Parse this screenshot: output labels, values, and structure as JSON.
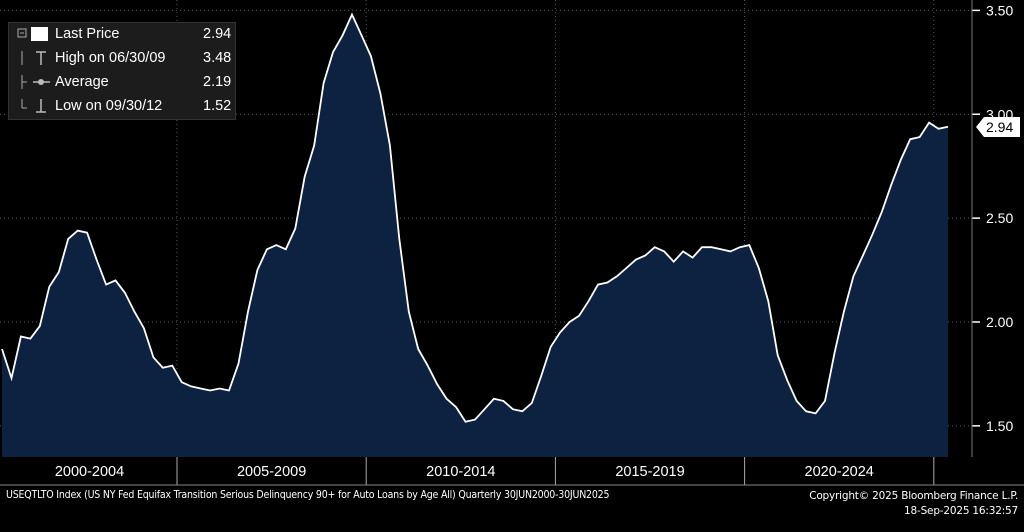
{
  "legend": {
    "last_label": "Last Price",
    "last_value": "2.94",
    "high_label": "High on 06/30/09",
    "high_value": "3.48",
    "avg_label": "Average",
    "avg_value": "2.19",
    "low_label": "Low on 09/30/12",
    "low_value": "1.52"
  },
  "footer": {
    "description": "USEQTLTO Index (US NY Fed Equifax Transition Serious Delinquency 90+ for Auto Loans by Age All)  Quarterly 30JUN2000-30JUN2025",
    "copyright": "Copyright© 2025 Bloomberg Finance L.P.",
    "timestamp": "18-Sep-2025 16:32:57"
  },
  "colors": {
    "background": "#000000",
    "fill": "#0d2240",
    "line": "#ffffff",
    "grid": "#5a5a5a",
    "panel": "#1c1c1c"
  },
  "chart_data": {
    "type": "area",
    "title": "",
    "ylabel": "",
    "xlabel": "",
    "ylim": [
      1.35,
      3.55
    ],
    "y_ticks": [
      "1.50",
      "2.00",
      "2.50",
      "3.00",
      "3.50"
    ],
    "x_ticks": [
      "2000-2004",
      "2005-2009",
      "2010-2014",
      "2015-2019",
      "2020-2024"
    ],
    "last_value_tag": "2.94",
    "grid": true,
    "legend_position": "top-left",
    "start": "2000-06-30",
    "frequency": "quarterly",
    "series": [
      {
        "name": "Last Price",
        "values": [
          1.87,
          1.73,
          1.93,
          1.92,
          1.98,
          2.17,
          2.24,
          2.4,
          2.44,
          2.43,
          2.3,
          2.18,
          2.2,
          2.14,
          2.05,
          1.97,
          1.83,
          1.78,
          1.79,
          1.71,
          1.69,
          1.68,
          1.67,
          1.68,
          1.67,
          1.8,
          2.05,
          2.25,
          2.35,
          2.37,
          2.35,
          2.45,
          2.7,
          2.85,
          3.15,
          3.3,
          3.38,
          3.48,
          3.38,
          3.28,
          3.1,
          2.85,
          2.4,
          2.05,
          1.87,
          1.79,
          1.7,
          1.63,
          1.59,
          1.52,
          1.53,
          1.58,
          1.63,
          1.62,
          1.58,
          1.57,
          1.61,
          1.74,
          1.88,
          1.95,
          2.0,
          2.03,
          2.1,
          2.18,
          2.19,
          2.22,
          2.26,
          2.3,
          2.32,
          2.36,
          2.34,
          2.29,
          2.34,
          2.31,
          2.36,
          2.36,
          2.35,
          2.34,
          2.36,
          2.37,
          2.26,
          2.1,
          1.84,
          1.72,
          1.62,
          1.57,
          1.56,
          1.62,
          1.85,
          2.05,
          2.22,
          2.32,
          2.42,
          2.53,
          2.66,
          2.78,
          2.88,
          2.89,
          2.96,
          2.93,
          2.94
        ]
      }
    ]
  }
}
